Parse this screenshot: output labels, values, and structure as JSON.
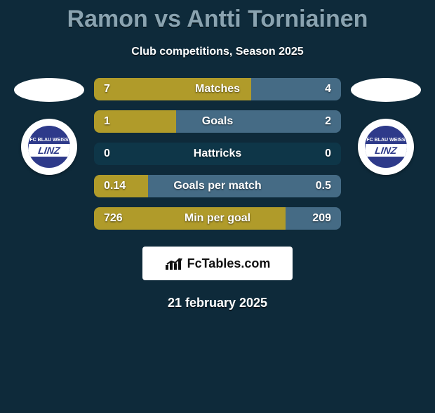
{
  "title": "Ramon vs Antti Torniainen",
  "subtitle": "Club competitions, Season 2025",
  "date": "21 february 2025",
  "site_label": "FcTables.com",
  "colors": {
    "background": "#0e2a3a",
    "title_color": "#8aa3b0",
    "bar_left": "#b09b2a",
    "bar_right": "#456b85",
    "bar_dark": "#0e3648",
    "badge_bg": "#2e3a8a"
  },
  "left_team": {
    "badge_top": "FC BLAU WEISS",
    "badge_mid": "LINZ"
  },
  "right_team": {
    "badge_top": "FC BLAU WEISS",
    "badge_mid": "LINZ"
  },
  "stats": [
    {
      "label": "Matches",
      "left_val": "7",
      "right_val": "4",
      "left_pct": 63.6,
      "right_pct": 36.4,
      "left_color": "#b09b2a",
      "right_color": "#456b85"
    },
    {
      "label": "Goals",
      "left_val": "1",
      "right_val": "2",
      "left_pct": 33.3,
      "right_pct": 66.7,
      "left_color": "#b09b2a",
      "right_color": "#456b85"
    },
    {
      "label": "Hattricks",
      "left_val": "0",
      "right_val": "0",
      "left_pct": 50.0,
      "right_pct": 50.0,
      "left_color": "#0e3648",
      "right_color": "#0e3648"
    },
    {
      "label": "Goals per match",
      "left_val": "0.14",
      "right_val": "0.5",
      "left_pct": 21.9,
      "right_pct": 78.1,
      "left_color": "#b09b2a",
      "right_color": "#456b85"
    },
    {
      "label": "Min per goal",
      "left_val": "726",
      "right_val": "209",
      "left_pct": 77.6,
      "right_pct": 22.4,
      "left_color": "#b09b2a",
      "right_color": "#456b85"
    }
  ],
  "fonts": {
    "title_size": 34,
    "subtitle_size": 16,
    "bar_value_size": 16,
    "bar_label_size": 16,
    "date_size": 18
  }
}
